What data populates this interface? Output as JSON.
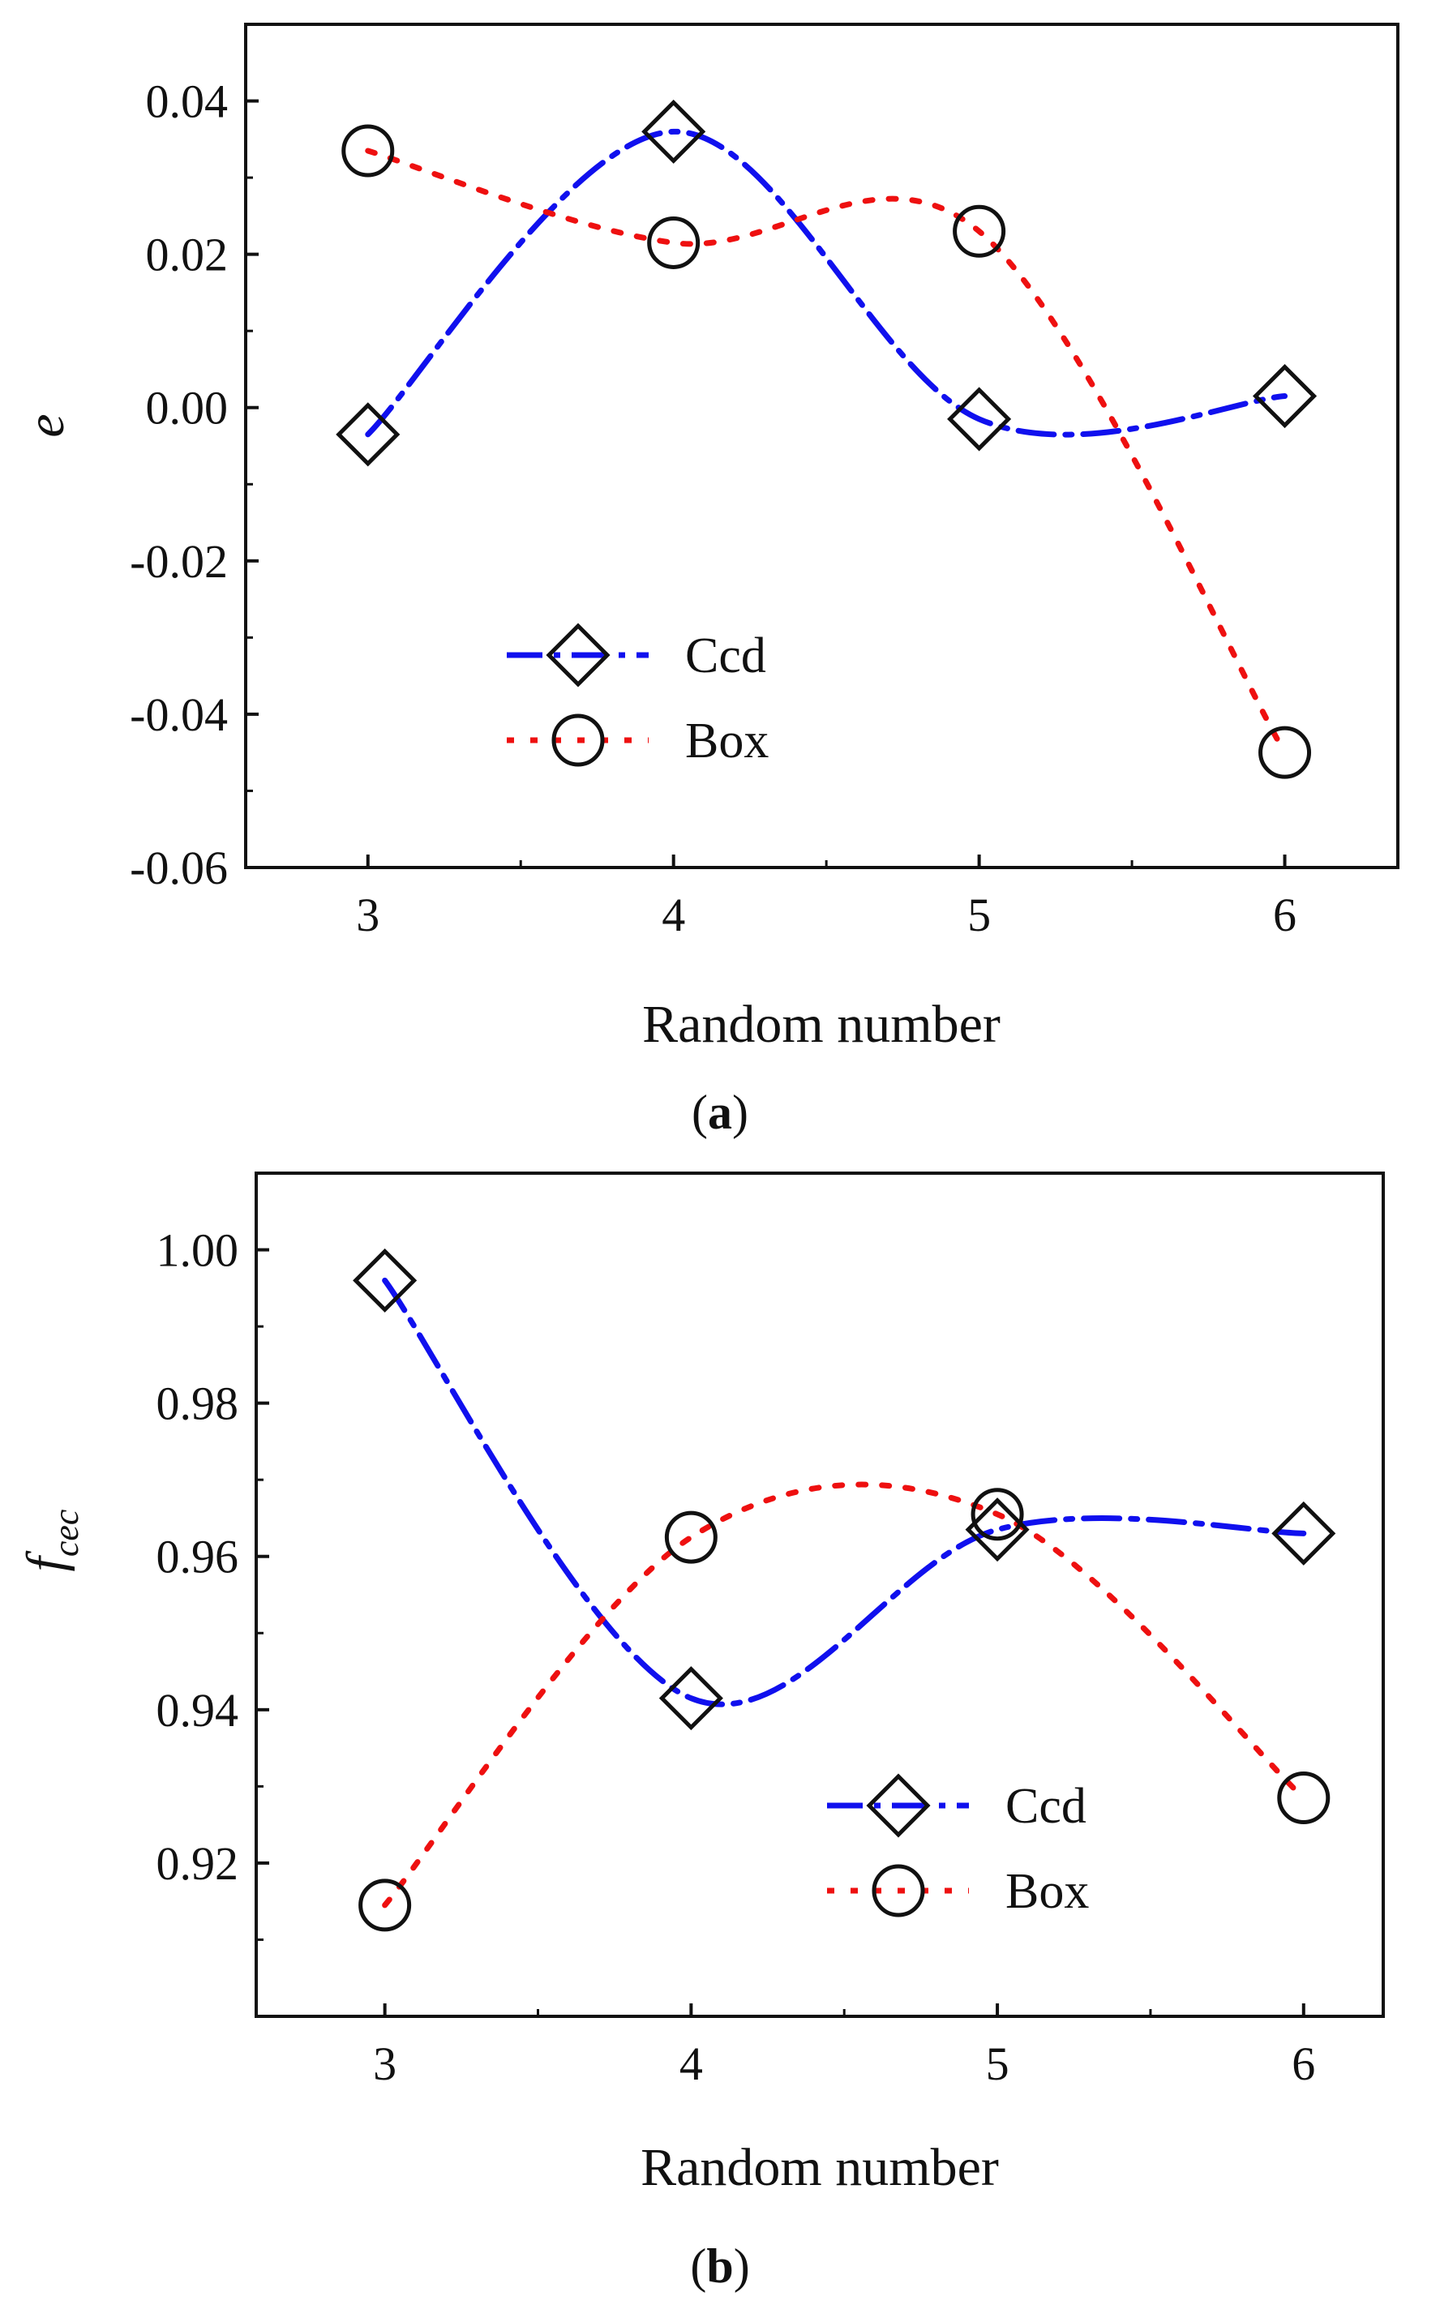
{
  "colors": {
    "ccd": "#1010ee",
    "box": "#ee1010",
    "axis": "#111111",
    "marker": "#111111"
  },
  "chart_data": [
    {
      "type": "line",
      "panel": "a",
      "panel_label_open": "(",
      "panel_label_letter": "a",
      "panel_label_close": ")",
      "xlabel": "Random number",
      "ylabel": "e",
      "xlim": [
        2.6,
        6.37
      ],
      "ylim": [
        -0.06,
        0.05
      ],
      "x_ticks": [
        3,
        4,
        5,
        6
      ],
      "x_tick_labels": [
        "3",
        "4",
        "5",
        "6"
      ],
      "y_ticks": [
        -0.06,
        -0.04,
        -0.02,
        0.0,
        0.02,
        0.04
      ],
      "y_tick_labels": [
        "-0.06",
        "-0.04",
        "-0.02",
        "0.00",
        "0.02",
        "0.04"
      ],
      "legend_position": "lower-left",
      "series": [
        {
          "name": "Ccd",
          "marker": "diamond",
          "line_style": "dash-dot",
          "color": "#1010ee",
          "x": [
            3,
            4,
            5,
            6
          ],
          "y": [
            -0.0035,
            0.036,
            -0.0015,
            0.0015
          ]
        },
        {
          "name": "Box",
          "marker": "circle",
          "line_style": "dotted",
          "color": "#ee1010",
          "x": [
            3,
            4,
            5,
            6
          ],
          "y": [
            0.0335,
            0.0215,
            0.023,
            -0.045
          ]
        }
      ]
    },
    {
      "type": "line",
      "panel": "b",
      "panel_label_open": "(",
      "panel_label_letter": "b",
      "panel_label_close": ")",
      "xlabel": "Random number",
      "ylabel_main": "f",
      "ylabel_sub": "cec",
      "xlim": [
        2.58,
        6.26
      ],
      "ylim": [
        0.9,
        1.01
      ],
      "x_ticks": [
        3,
        4,
        5,
        6
      ],
      "x_tick_labels": [
        "3",
        "4",
        "5",
        "6"
      ],
      "y_ticks": [
        0.92,
        0.94,
        0.96,
        0.98,
        1.0
      ],
      "y_tick_labels": [
        "0.92",
        "0.94",
        "0.96",
        "0.98",
        "1.00"
      ],
      "legend_position": "lower-right",
      "series": [
        {
          "name": "Ccd",
          "marker": "diamond",
          "line_style": "dash-dot",
          "color": "#1010ee",
          "x": [
            3,
            4,
            5,
            6
          ],
          "y": [
            0.996,
            0.9415,
            0.9635,
            0.963
          ]
        },
        {
          "name": "Box",
          "marker": "circle",
          "line_style": "dotted",
          "color": "#ee1010",
          "x": [
            3,
            4,
            5,
            6
          ],
          "y": [
            0.9145,
            0.9625,
            0.9655,
            0.9285
          ]
        }
      ]
    }
  ]
}
